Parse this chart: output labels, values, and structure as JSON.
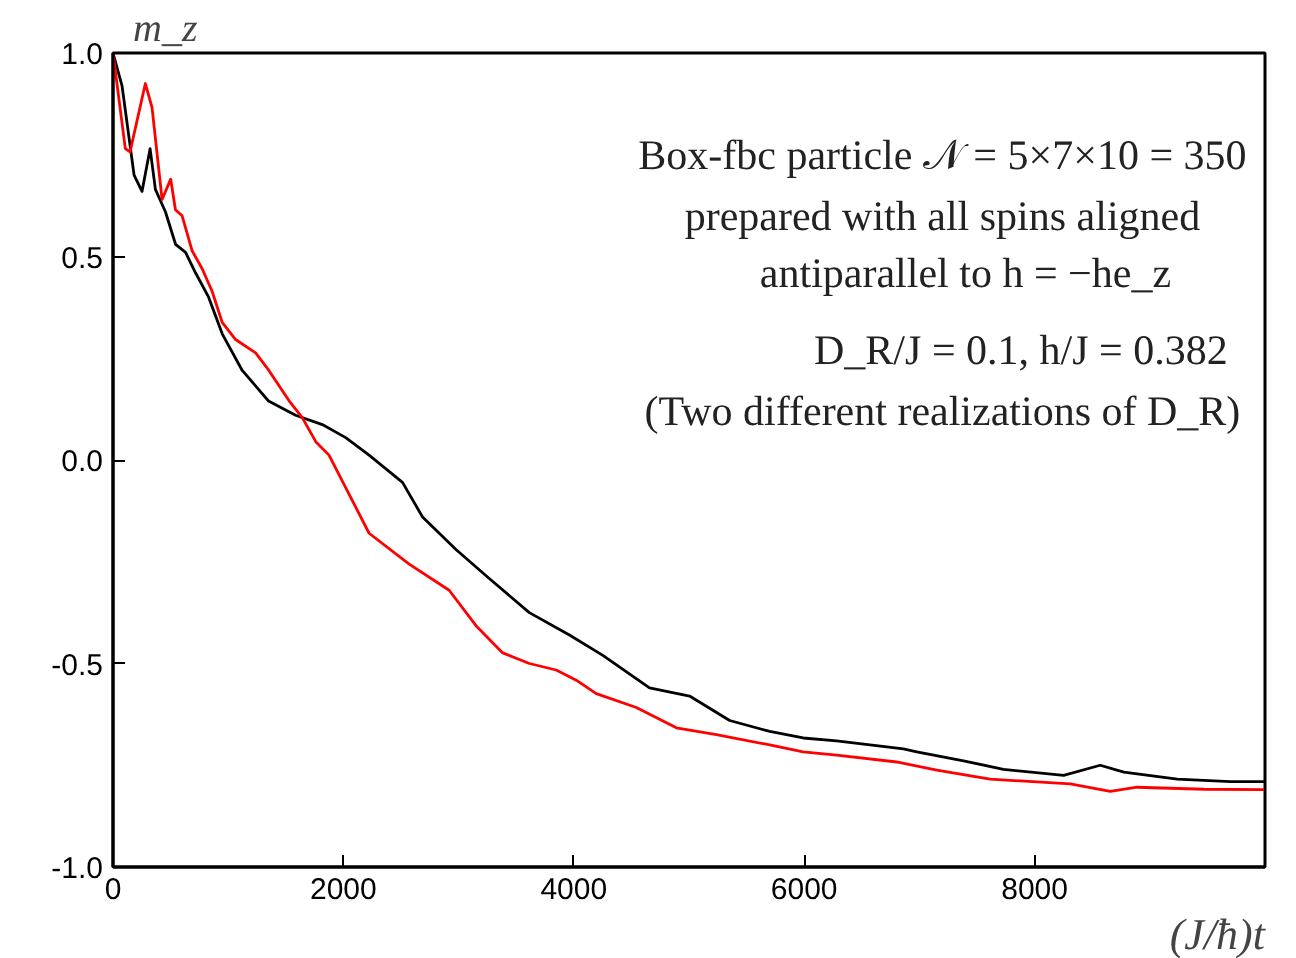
{
  "chart_data": {
    "type": "line",
    "xlabel": "(J/ħ)t",
    "ylabel": "m_z",
    "xlim": [
      0,
      10000
    ],
    "ylim": [
      -1.0,
      1.0
    ],
    "xticks": [
      0,
      2000,
      4000,
      6000,
      8000
    ],
    "yticks": [
      {
        "value": -1.0,
        "label": "-1.0"
      },
      {
        "value": -0.5,
        "label": "-0.5"
      },
      {
        "value": 0.0,
        "label": "0.0"
      },
      {
        "value": 0.5,
        "label": "0.5"
      },
      {
        "value": 1.0,
        "label": "1.0"
      }
    ],
    "grid": false,
    "line_style": "solid",
    "marker": "none",
    "annotations": [
      "Box-fbc particle 𝒩 = 5×7×10 = 350",
      "prepared with all spins aligned",
      "antiparallel to h = −he_z",
      "D_R/J = 0.1,        h/J = 0.382",
      "(Two different realizations of D_R)"
    ],
    "series": [
      {
        "color": "#000000",
        "x": [
          0,
          78,
          183,
          252,
          322,
          368,
          455,
          543,
          630,
          716,
          830,
          948,
          1122,
          1350,
          1585,
          1817,
          2020,
          2223,
          2513,
          2687,
          2977,
          3261,
          3614,
          3962,
          4252,
          4657,
          5005,
          5353,
          5701,
          5991,
          6281,
          6861,
          6977,
          7383,
          7730,
          8252,
          8570,
          8774,
          9238,
          9701,
          9991
        ],
        "values": [
          1.0,
          0.92,
          0.7,
          0.66,
          0.765,
          0.665,
          0.61,
          0.53,
          0.51,
          0.46,
          0.4,
          0.31,
          0.22,
          0.145,
          0.11,
          0.087,
          0.055,
          0.012,
          -0.055,
          -0.14,
          -0.22,
          -0.29,
          -0.375,
          -0.43,
          -0.48,
          -0.56,
          -0.58,
          -0.64,
          -0.667,
          -0.683,
          -0.69,
          -0.71,
          -0.717,
          -0.739,
          -0.76,
          -0.775,
          -0.75,
          -0.767,
          -0.784,
          -0.79,
          -0.79
        ]
      },
      {
        "color": "#ff0000",
        "x": [
          0,
          107,
          148,
          281,
          339,
          426,
          501,
          542,
          600,
          687,
          774,
          861,
          948,
          1064,
          1238,
          1353,
          1527,
          1643,
          1760,
          1875,
          2223,
          2571,
          2918,
          3151,
          3383,
          3614,
          3847,
          4021,
          4195,
          4543,
          4890,
          5238,
          5701,
          5991,
          6281,
          6803,
          7151,
          7614,
          8310,
          8657,
          8890,
          9470,
          9991
        ],
        "values": [
          1.0,
          0.765,
          0.757,
          0.925,
          0.866,
          0.64,
          0.69,
          0.615,
          0.6,
          0.514,
          0.47,
          0.414,
          0.338,
          0.296,
          0.263,
          0.22,
          0.146,
          0.104,
          0.045,
          0.012,
          -0.18,
          -0.256,
          -0.32,
          -0.407,
          -0.474,
          -0.5,
          -0.516,
          -0.541,
          -0.574,
          -0.608,
          -0.658,
          -0.675,
          -0.7,
          -0.717,
          -0.725,
          -0.742,
          -0.762,
          -0.784,
          -0.796,
          -0.814,
          -0.804,
          -0.809,
          -0.81
        ]
      }
    ]
  }
}
